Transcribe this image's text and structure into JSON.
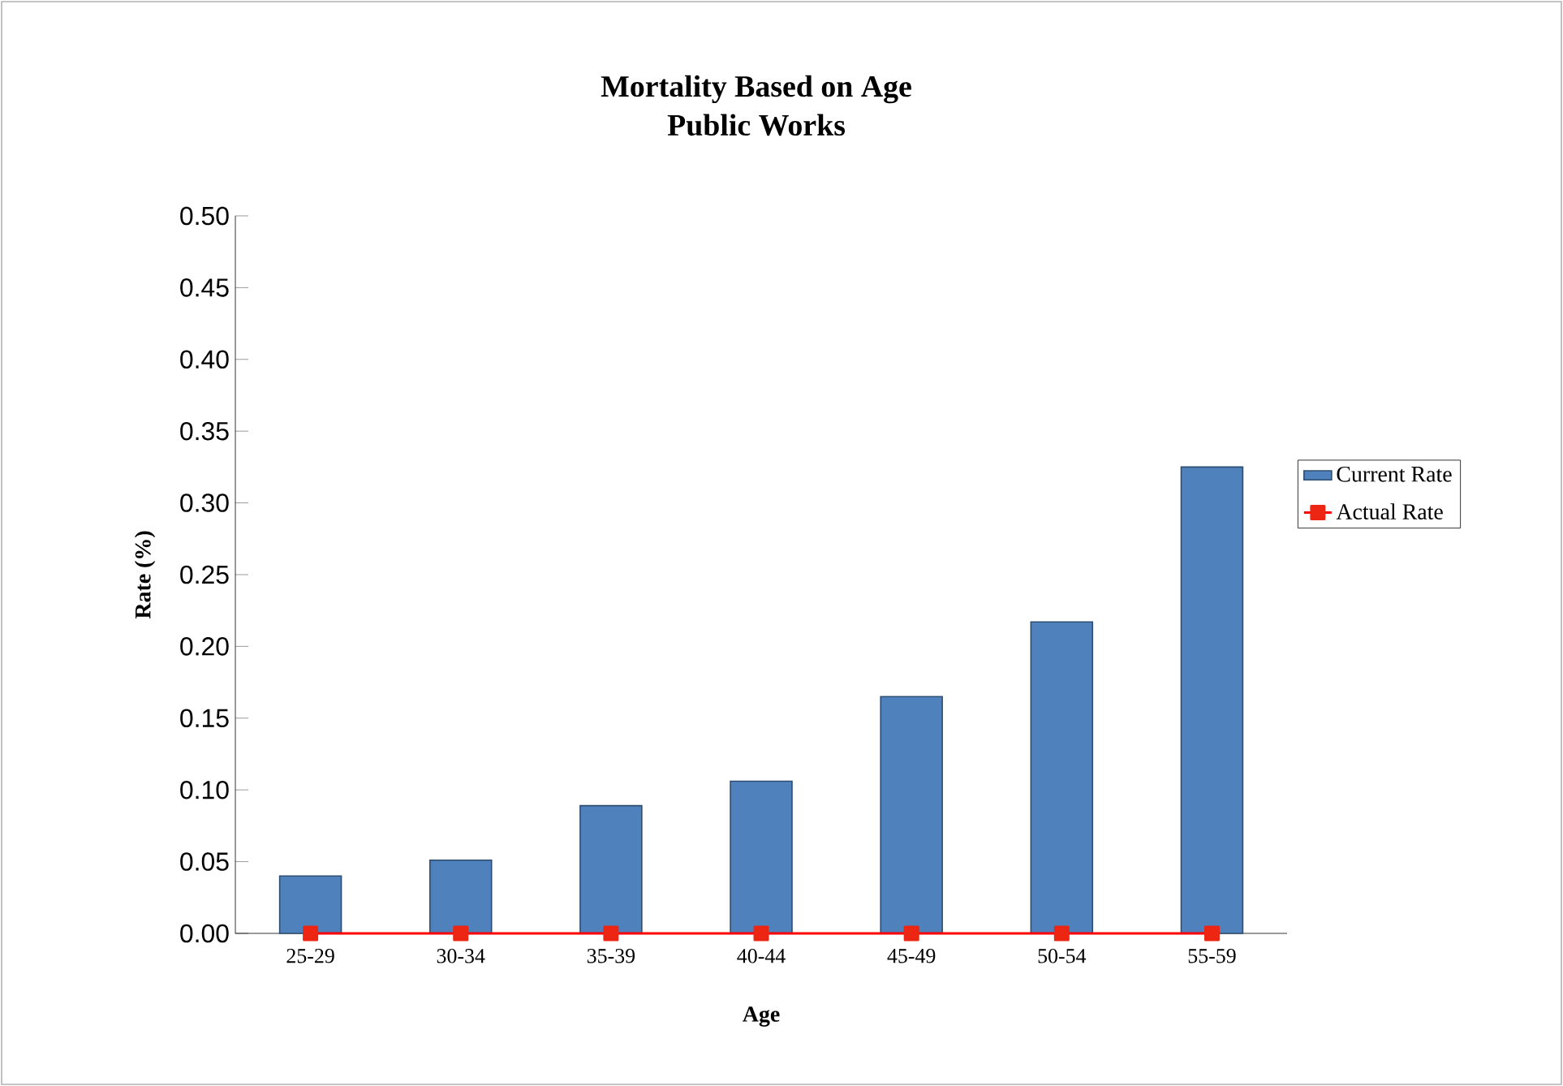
{
  "chart_data": {
    "type": "bar",
    "title": "Mortality Based on Age\nPublic Works",
    "xlabel": "Age",
    "ylabel": "Rate (%)",
    "categories": [
      "25-29",
      "30-34",
      "35-39",
      "40-44",
      "45-49",
      "50-54",
      "55-59"
    ],
    "series": [
      {
        "name": "Current Rate",
        "color": "#4f81bd",
        "values": [
          0.04,
          0.051,
          0.089,
          0.106,
          0.165,
          0.217,
          0.325
        ]
      },
      {
        "name": "Actual Rate",
        "type": "line",
        "color": "#ff0000",
        "values": [
          0,
          0,
          0,
          0,
          0,
          0,
          0
        ]
      }
    ],
    "ylim": [
      0,
      0.5
    ],
    "yticks": [
      {
        "value": 0,
        "label": "0.00"
      },
      {
        "value": 0.05,
        "label": "0.05"
      },
      {
        "value": 0.1,
        "label": "0.10"
      },
      {
        "value": 0.15,
        "label": "0.15"
      },
      {
        "value": 0.2,
        "label": "0.20"
      },
      {
        "value": 0.25,
        "label": "0.25"
      },
      {
        "value": 0.3,
        "label": "0.30"
      },
      {
        "value": 0.35,
        "label": "0.35"
      },
      {
        "value": 0.4,
        "label": "0.40"
      },
      {
        "value": 0.45,
        "label": "0.45"
      },
      {
        "value": 0.5,
        "label": "0.50"
      }
    ],
    "grid": false,
    "legend": "right",
    "marker": "square"
  }
}
